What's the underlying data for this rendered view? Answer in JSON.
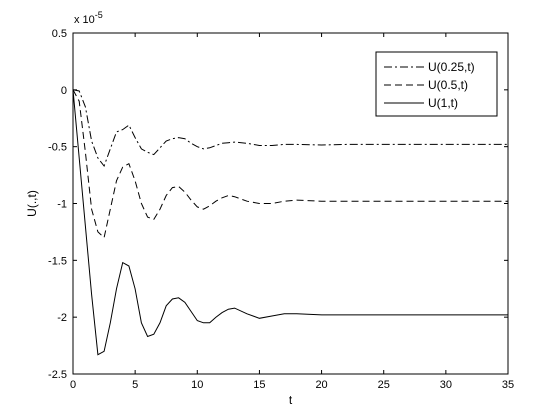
{
  "chart_data": {
    "type": "line",
    "title": "",
    "xlabel": "t",
    "ylabel": "U(.,t)",
    "y_multiplier_label": "x 10",
    "y_multiplier_exponent": "-5",
    "xlim": [
      0,
      35
    ],
    "ylim": [
      -2.5,
      0.5
    ],
    "x_ticks": [
      0,
      5,
      10,
      15,
      20,
      25,
      30,
      35
    ],
    "y_ticks": [
      -2.5,
      -2,
      -1.5,
      -1,
      -0.5,
      0,
      0.5
    ],
    "x_tick_labels": [
      "0",
      "5",
      "10",
      "15",
      "20",
      "25",
      "30",
      "35"
    ],
    "y_tick_labels": [
      "-2.5",
      "-2",
      "-1.5",
      "-1",
      "-0.5",
      "0",
      "0.5"
    ],
    "grid": false,
    "legend_position": "top-right",
    "series": [
      {
        "name": "U(0.25,t)",
        "line_style": "dash-dot",
        "color": "#000000",
        "x": [
          0,
          0.5,
          1.0,
          1.5,
          2.0,
          2.5,
          3.0,
          3.5,
          4.0,
          4.5,
          5.0,
          5.5,
          6.0,
          6.5,
          7.0,
          7.5,
          8.0,
          8.5,
          9.0,
          9.5,
          10.0,
          10.5,
          11.0,
          11.5,
          12.0,
          12.5,
          13.0,
          14.0,
          15.0,
          16.0,
          17.0,
          18.0,
          20.0,
          22.0,
          25.0,
          28.0,
          31.0,
          35.0
        ],
        "y": [
          0,
          -0.01,
          -0.15,
          -0.45,
          -0.6,
          -0.67,
          -0.52,
          -0.37,
          -0.35,
          -0.31,
          -0.42,
          -0.52,
          -0.55,
          -0.57,
          -0.51,
          -0.45,
          -0.43,
          -0.42,
          -0.43,
          -0.47,
          -0.5,
          -0.52,
          -0.51,
          -0.49,
          -0.47,
          -0.465,
          -0.46,
          -0.47,
          -0.49,
          -0.49,
          -0.48,
          -0.48,
          -0.485,
          -0.48,
          -0.48,
          -0.48,
          -0.48,
          -0.48
        ]
      },
      {
        "name": "U(0.5,t)",
        "line_style": "dashed",
        "color": "#000000",
        "x": [
          0,
          0.5,
          1.0,
          1.5,
          2.0,
          2.5,
          3.0,
          3.5,
          4.0,
          4.5,
          5.0,
          5.5,
          6.0,
          6.5,
          7.0,
          7.5,
          8.0,
          8.5,
          9.0,
          9.5,
          10.0,
          10.5,
          11.0,
          11.5,
          12.0,
          12.5,
          13.0,
          14.0,
          15.0,
          16.0,
          17.0,
          18.0,
          20.0,
          22.0,
          25.0,
          28.0,
          31.0,
          35.0
        ],
        "y": [
          0,
          -0.1,
          -0.55,
          -1.05,
          -1.25,
          -1.3,
          -1.05,
          -0.8,
          -0.68,
          -0.65,
          -0.8,
          -1.0,
          -1.12,
          -1.14,
          -1.05,
          -0.93,
          -0.86,
          -0.85,
          -0.9,
          -0.97,
          -1.03,
          -1.05,
          -1.02,
          -0.98,
          -0.95,
          -0.93,
          -0.94,
          -0.98,
          -1.0,
          -1.0,
          -0.98,
          -0.97,
          -0.98,
          -0.98,
          -0.98,
          -0.98,
          -0.98,
          -0.98
        ]
      },
      {
        "name": "U(1,t)",
        "line_style": "solid",
        "color": "#000000",
        "x": [
          0,
          0.5,
          1.0,
          1.5,
          2.0,
          2.5,
          3.0,
          3.5,
          4.0,
          4.5,
          5.0,
          5.5,
          6.0,
          6.5,
          7.0,
          7.5,
          8.0,
          8.5,
          9.0,
          9.5,
          10.0,
          10.5,
          11.0,
          11.5,
          12.0,
          12.5,
          13.0,
          14.0,
          15.0,
          16.0,
          17.0,
          18.0,
          20.0,
          22.0,
          25.0,
          28.0,
          31.0,
          35.0
        ],
        "y": [
          0,
          -0.6,
          -1.2,
          -1.8,
          -2.33,
          -2.3,
          -2.05,
          -1.75,
          -1.52,
          -1.55,
          -1.75,
          -2.05,
          -2.17,
          -2.15,
          -2.05,
          -1.9,
          -1.84,
          -1.83,
          -1.87,
          -1.95,
          -2.03,
          -2.05,
          -2.05,
          -2.0,
          -1.96,
          -1.93,
          -1.92,
          -1.97,
          -2.01,
          -1.99,
          -1.97,
          -1.97,
          -1.98,
          -1.98,
          -1.98,
          -1.98,
          -1.98,
          -1.98
        ]
      }
    ]
  }
}
